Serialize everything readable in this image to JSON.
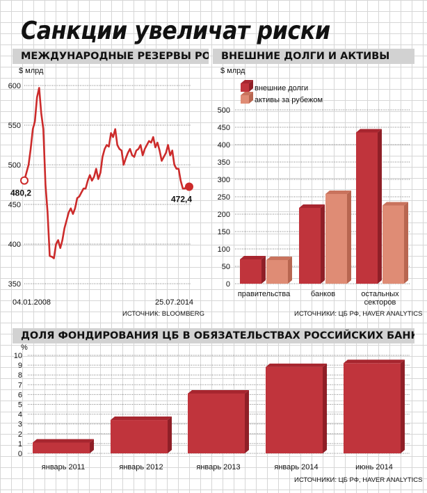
{
  "title": "Санкции увеличат риски",
  "colors": {
    "bar_dark": "#c0343c",
    "bar_dark_top": "#a7262f",
    "bar_dark_side": "#8f1f27",
    "bar_light": "#df8c75",
    "bar_light_top": "#c9735d",
    "bar_light_side": "#b86650",
    "line": "#cc2b2b",
    "header_bg": "#d2d2d2"
  },
  "chart_data": [
    {
      "type": "line",
      "title": "МЕЖДУНАРОДНЫЕ РЕЗЕРВЫ РОССИИ",
      "ylabel": "$ млрд",
      "ylim": [
        350,
        600
      ],
      "yticks": [
        350,
        400,
        450,
        500,
        550,
        600
      ],
      "x_start_label": "04.01.2008",
      "x_end_label": "25.07.2014",
      "start_label": "480,2",
      "end_label": "472,4",
      "source": "ИСТОЧНИК: BLOOMBERG",
      "grid": true,
      "series": [
        {
          "x": [
            "2008-01-04",
            "2008-02",
            "2008-03",
            "2008-04",
            "2008-05",
            "2008-06",
            "2008-07",
            "2008-08",
            "2008-09",
            "2008-10",
            "2008-11",
            "2008-12",
            "2009-01",
            "2009-02",
            "2009-03",
            "2009-04",
            "2009-05",
            "2009-06",
            "2009-07",
            "2009-08",
            "2009-09",
            "2009-10",
            "2009-11",
            "2009-12",
            "2010-01",
            "2010-02",
            "2010-03",
            "2010-04",
            "2010-05",
            "2010-06",
            "2010-07",
            "2010-08",
            "2010-09",
            "2010-10",
            "2010-11",
            "2010-12",
            "2011-01",
            "2011-02",
            "2011-03",
            "2011-04",
            "2011-05",
            "2011-06",
            "2011-07",
            "2011-08",
            "2011-09",
            "2011-10",
            "2011-11",
            "2011-12",
            "2012-01",
            "2012-02",
            "2012-03",
            "2012-04",
            "2012-05",
            "2012-06",
            "2012-07",
            "2012-08",
            "2012-09",
            "2012-10",
            "2012-11",
            "2012-12",
            "2013-01",
            "2013-02",
            "2013-03",
            "2013-04",
            "2013-05",
            "2013-06",
            "2013-07",
            "2013-08",
            "2013-09",
            "2013-10",
            "2013-11",
            "2013-12",
            "2014-01",
            "2014-02",
            "2014-03",
            "2014-04",
            "2014-05",
            "2014-06",
            "2014-07-25"
          ],
          "values": [
            480.2,
            490,
            500,
            520,
            545,
            555,
            585,
            597,
            565,
            545,
            475,
            440,
            385,
            384,
            382,
            400,
            405,
            395,
            405,
            420,
            430,
            440,
            445,
            438,
            445,
            458,
            460,
            465,
            470,
            470,
            480,
            487,
            480,
            485,
            495,
            482,
            490,
            510,
            520,
            525,
            523,
            540,
            535,
            545,
            525,
            520,
            518,
            500,
            508,
            515,
            520,
            512,
            510,
            518,
            520,
            525,
            512,
            520,
            525,
            530,
            528,
            535,
            522,
            528,
            518,
            505,
            510,
            515,
            525,
            512,
            518,
            500,
            495,
            495,
            480,
            470,
            470,
            475,
            472.4
          ]
        }
      ]
    },
    {
      "type": "bar",
      "title": "ВНЕШНИЕ ДОЛГИ И АКТИВЫ",
      "ylabel": "$ млрд",
      "ylim": [
        0,
        500
      ],
      "yticks": [
        0,
        50,
        100,
        150,
        200,
        250,
        300,
        350,
        400,
        450,
        500
      ],
      "categories": [
        "правительства",
        "банков",
        "остальных\nсекторов"
      ],
      "legend_position": "top-left",
      "series": [
        {
          "name": "внешние долги",
          "values": [
            70,
            218,
            435
          ]
        },
        {
          "name": "активы за рубежом",
          "values": [
            68,
            258,
            225
          ]
        }
      ],
      "source": "ИСТОЧНИКИ: ЦБ РФ, HAVER ANALYTICS",
      "grid": true
    },
    {
      "type": "bar",
      "title": "ДОЛЯ ФОНДИРОВАНИЯ ЦБ В ОБЯЗАТЕЛЬСТВАХ РОССИЙСКИХ БАНКОВ",
      "ylabel": "%",
      "ylim": [
        0,
        10
      ],
      "yticks": [
        0,
        1,
        2,
        3,
        4,
        5,
        6,
        7,
        8,
        9,
        10
      ],
      "categories": [
        "январь 2011",
        "январь 2012",
        "январь 2013",
        "январь 2014",
        "июнь 2014"
      ],
      "values": [
        1.1,
        3.4,
        6.1,
        8.8,
        9.2
      ],
      "source": "ИСТОЧНИКИ: ЦБ РФ, HAVER ANALYTICS",
      "grid": true
    }
  ]
}
